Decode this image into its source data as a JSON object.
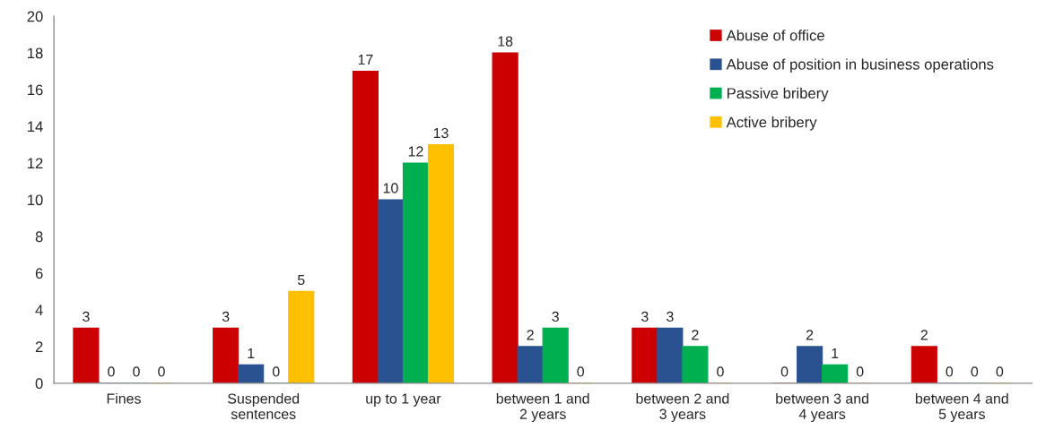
{
  "chart_data": {
    "type": "bar",
    "categories": [
      "Fines",
      "Suspended sentences",
      "up to 1 year",
      "between 1 and 2 years",
      "between 2 and 3 years",
      "between 3 and 4 years",
      "between 4 and 5 years"
    ],
    "series": [
      {
        "name": "Abuse of office",
        "color": "#cc0000",
        "values": [
          3,
          3,
          17,
          18,
          3,
          0,
          2
        ]
      },
      {
        "name": "Abuse of position in business operations",
        "color": "#2a5291",
        "values": [
          0,
          1,
          10,
          2,
          3,
          2,
          0
        ]
      },
      {
        "name": "Passive bribery",
        "color": "#00b050",
        "values": [
          0,
          0,
          12,
          3,
          2,
          1,
          0
        ]
      },
      {
        "name": "Active bribery",
        "color": "#ffc000",
        "values": [
          0,
          5,
          13,
          0,
          0,
          0,
          0
        ]
      }
    ],
    "ylim": [
      0,
      20
    ],
    "yticks": [
      0,
      2,
      4,
      6,
      8,
      10,
      12,
      14,
      16,
      18,
      20
    ],
    "data_labels": true,
    "legend": "top right",
    "grid": false
  }
}
